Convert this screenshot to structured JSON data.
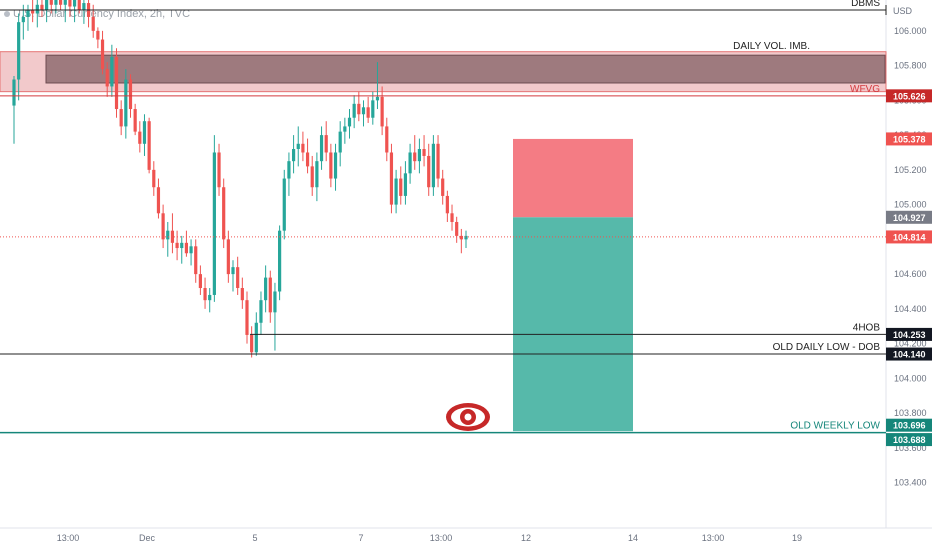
{
  "title_bar": {
    "text": "U.S. Dollar Currency Index, 2h, TVC"
  },
  "axis": {
    "currency": "USD"
  },
  "colors": {
    "bull": "#26a69a",
    "bear": "#ef5350",
    "stop_zone": "#f47c84",
    "target_zone": "#56b9aa",
    "imbalance_zone": "#9e7a7e",
    "wfvg_band": "#f2c9cb",
    "old_weekly_low": "#15867a"
  },
  "chart_data": {
    "type": "candlestick",
    "x_tick_labels": [
      "13:00",
      "Dec",
      "5",
      "7",
      "13:00",
      "12",
      "14",
      "13:00",
      "19"
    ],
    "y_tick_labels": [
      "106.000",
      "105.800",
      "105.600",
      "105.400",
      "105.200",
      "105.000",
      "104.800",
      "104.600",
      "104.400",
      "104.200",
      "104.000",
      "103.800",
      "103.600",
      "103.400"
    ],
    "ylim": [
      103.3,
      106.12
    ],
    "candles": [
      {
        "o": 105.57,
        "h": 105.74,
        "l": 105.35,
        "c": 105.72
      },
      {
        "o": 105.72,
        "h": 106.1,
        "l": 105.6,
        "c": 106.05
      },
      {
        "o": 106.05,
        "h": 106.15,
        "l": 105.95,
        "c": 106.08
      },
      {
        "o": 106.08,
        "h": 106.15,
        "l": 106.0,
        "c": 106.12
      },
      {
        "o": 106.12,
        "h": 106.2,
        "l": 106.05,
        "c": 106.1
      },
      {
        "o": 106.1,
        "h": 106.2,
        "l": 106.02,
        "c": 106.15
      },
      {
        "o": 106.15,
        "h": 106.22,
        "l": 106.08,
        "c": 106.12
      },
      {
        "o": 106.12,
        "h": 106.25,
        "l": 106.05,
        "c": 106.18
      },
      {
        "o": 106.18,
        "h": 106.25,
        "l": 106.1,
        "c": 106.15
      },
      {
        "o": 106.15,
        "h": 106.22,
        "l": 106.1,
        "c": 106.2
      },
      {
        "o": 106.2,
        "h": 106.26,
        "l": 106.12,
        "c": 106.15
      },
      {
        "o": 106.15,
        "h": 106.22,
        "l": 106.05,
        "c": 106.18
      },
      {
        "o": 106.18,
        "h": 106.24,
        "l": 106.08,
        "c": 106.14
      },
      {
        "o": 106.14,
        "h": 106.22,
        "l": 106.05,
        "c": 106.18
      },
      {
        "o": 106.18,
        "h": 106.25,
        "l": 106.1,
        "c": 106.12
      },
      {
        "o": 106.12,
        "h": 106.2,
        "l": 106.04,
        "c": 106.16
      },
      {
        "o": 106.16,
        "h": 106.22,
        "l": 106.02,
        "c": 106.08
      },
      {
        "o": 106.08,
        "h": 106.15,
        "l": 105.96,
        "c": 106.0
      },
      {
        "o": 106.0,
        "h": 106.02,
        "l": 105.9,
        "c": 105.95
      },
      {
        "o": 105.95,
        "h": 106.0,
        "l": 105.75,
        "c": 105.78
      },
      {
        "o": 105.78,
        "h": 105.82,
        "l": 105.62,
        "c": 105.68
      },
      {
        "o": 105.68,
        "h": 105.92,
        "l": 105.62,
        "c": 105.85
      },
      {
        "o": 105.85,
        "h": 105.9,
        "l": 105.5,
        "c": 105.55
      },
      {
        "o": 105.55,
        "h": 105.6,
        "l": 105.4,
        "c": 105.45
      },
      {
        "o": 105.45,
        "h": 105.78,
        "l": 105.38,
        "c": 105.72
      },
      {
        "o": 105.72,
        "h": 105.75,
        "l": 105.5,
        "c": 105.55
      },
      {
        "o": 105.55,
        "h": 105.58,
        "l": 105.4,
        "c": 105.42
      },
      {
        "o": 105.42,
        "h": 105.48,
        "l": 105.3,
        "c": 105.35
      },
      {
        "o": 105.35,
        "h": 105.52,
        "l": 105.28,
        "c": 105.48
      },
      {
        "o": 105.48,
        "h": 105.5,
        "l": 105.18,
        "c": 105.2
      },
      {
        "o": 105.2,
        "h": 105.25,
        "l": 105.05,
        "c": 105.1
      },
      {
        "o": 105.1,
        "h": 105.15,
        "l": 104.92,
        "c": 104.95
      },
      {
        "o": 104.95,
        "h": 105.0,
        "l": 104.75,
        "c": 104.8
      },
      {
        "o": 104.8,
        "h": 104.9,
        "l": 104.7,
        "c": 104.85
      },
      {
        "o": 104.85,
        "h": 104.95,
        "l": 104.72,
        "c": 104.78
      },
      {
        "o": 104.78,
        "h": 104.85,
        "l": 104.68,
        "c": 104.75
      },
      {
        "o": 104.75,
        "h": 104.82,
        "l": 104.66,
        "c": 104.78
      },
      {
        "o": 104.78,
        "h": 104.85,
        "l": 104.7,
        "c": 104.72
      },
      {
        "o": 104.72,
        "h": 104.8,
        "l": 104.65,
        "c": 104.76
      },
      {
        "o": 104.76,
        "h": 104.8,
        "l": 104.55,
        "c": 104.6
      },
      {
        "o": 104.6,
        "h": 104.65,
        "l": 104.48,
        "c": 104.52
      },
      {
        "o": 104.52,
        "h": 104.58,
        "l": 104.4,
        "c": 104.45
      },
      {
        "o": 104.45,
        "h": 104.52,
        "l": 104.38,
        "c": 104.48
      },
      {
        "o": 104.48,
        "h": 105.4,
        "l": 104.44,
        "c": 105.3
      },
      {
        "o": 105.3,
        "h": 105.35,
        "l": 105.05,
        "c": 105.1
      },
      {
        "o": 105.1,
        "h": 105.15,
        "l": 104.75,
        "c": 104.8
      },
      {
        "o": 104.8,
        "h": 104.85,
        "l": 104.55,
        "c": 104.6
      },
      {
        "o": 104.6,
        "h": 104.68,
        "l": 104.5,
        "c": 104.64
      },
      {
        "o": 104.64,
        "h": 104.7,
        "l": 104.48,
        "c": 104.52
      },
      {
        "o": 104.52,
        "h": 104.58,
        "l": 104.4,
        "c": 104.45
      },
      {
        "o": 104.45,
        "h": 104.5,
        "l": 104.2,
        "c": 104.25
      },
      {
        "o": 104.25,
        "h": 104.3,
        "l": 104.12,
        "c": 104.15
      },
      {
        "o": 104.15,
        "h": 104.38,
        "l": 104.13,
        "c": 104.32
      },
      {
        "o": 104.32,
        "h": 104.5,
        "l": 104.25,
        "c": 104.45
      },
      {
        "o": 104.45,
        "h": 104.65,
        "l": 104.38,
        "c": 104.58
      },
      {
        "o": 104.58,
        "h": 104.62,
        "l": 104.32,
        "c": 104.38
      },
      {
        "o": 104.38,
        "h": 104.55,
        "l": 104.16,
        "c": 104.5
      },
      {
        "o": 104.5,
        "h": 104.88,
        "l": 104.45,
        "c": 104.85
      },
      {
        "o": 104.85,
        "h": 105.2,
        "l": 104.8,
        "c": 105.15
      },
      {
        "o": 105.15,
        "h": 105.3,
        "l": 105.05,
        "c": 105.25
      },
      {
        "o": 105.25,
        "h": 105.4,
        "l": 105.18,
        "c": 105.32
      },
      {
        "o": 105.32,
        "h": 105.45,
        "l": 105.22,
        "c": 105.35
      },
      {
        "o": 105.35,
        "h": 105.42,
        "l": 105.25,
        "c": 105.3
      },
      {
        "o": 105.3,
        "h": 105.38,
        "l": 105.18,
        "c": 105.22
      },
      {
        "o": 105.22,
        "h": 105.28,
        "l": 105.05,
        "c": 105.1
      },
      {
        "o": 105.1,
        "h": 105.3,
        "l": 105.02,
        "c": 105.25
      },
      {
        "o": 105.25,
        "h": 105.45,
        "l": 105.2,
        "c": 105.4
      },
      {
        "o": 105.4,
        "h": 105.48,
        "l": 105.25,
        "c": 105.3
      },
      {
        "o": 105.3,
        "h": 105.35,
        "l": 105.1,
        "c": 105.15
      },
      {
        "o": 105.15,
        "h": 105.35,
        "l": 105.08,
        "c": 105.3
      },
      {
        "o": 105.3,
        "h": 105.48,
        "l": 105.22,
        "c": 105.42
      },
      {
        "o": 105.42,
        "h": 105.5,
        "l": 105.35,
        "c": 105.45
      },
      {
        "o": 105.45,
        "h": 105.55,
        "l": 105.38,
        "c": 105.5
      },
      {
        "o": 105.5,
        "h": 105.63,
        "l": 105.44,
        "c": 105.58
      },
      {
        "o": 105.58,
        "h": 105.65,
        "l": 105.48,
        "c": 105.52
      },
      {
        "o": 105.52,
        "h": 105.6,
        "l": 105.45,
        "c": 105.56
      },
      {
        "o": 105.56,
        "h": 105.62,
        "l": 105.47,
        "c": 105.5
      },
      {
        "o": 105.5,
        "h": 105.65,
        "l": 105.46,
        "c": 105.6
      },
      {
        "o": 105.6,
        "h": 105.82,
        "l": 105.55,
        "c": 105.62
      },
      {
        "o": 105.62,
        "h": 105.68,
        "l": 105.4,
        "c": 105.45
      },
      {
        "o": 105.45,
        "h": 105.5,
        "l": 105.25,
        "c": 105.3
      },
      {
        "o": 105.3,
        "h": 105.35,
        "l": 104.95,
        "c": 105.0
      },
      {
        "o": 105.0,
        "h": 105.2,
        "l": 104.95,
        "c": 105.15
      },
      {
        "o": 105.15,
        "h": 105.22,
        "l": 105.0,
        "c": 105.05
      },
      {
        "o": 105.05,
        "h": 105.25,
        "l": 105.0,
        "c": 105.18
      },
      {
        "o": 105.18,
        "h": 105.35,
        "l": 105.12,
        "c": 105.3
      },
      {
        "o": 105.3,
        "h": 105.4,
        "l": 105.2,
        "c": 105.25
      },
      {
        "o": 105.25,
        "h": 105.38,
        "l": 105.18,
        "c": 105.32
      },
      {
        "o": 105.32,
        "h": 105.4,
        "l": 105.22,
        "c": 105.28
      },
      {
        "o": 105.28,
        "h": 105.35,
        "l": 105.05,
        "c": 105.1
      },
      {
        "o": 105.1,
        "h": 105.4,
        "l": 105.05,
        "c": 105.35
      },
      {
        "o": 105.35,
        "h": 105.4,
        "l": 105.1,
        "c": 105.15
      },
      {
        "o": 105.15,
        "h": 105.2,
        "l": 105.0,
        "c": 105.05
      },
      {
        "o": 105.05,
        "h": 105.08,
        "l": 104.9,
        "c": 104.95
      },
      {
        "o": 104.95,
        "h": 105.0,
        "l": 104.85,
        "c": 104.9
      },
      {
        "o": 104.9,
        "h": 104.93,
        "l": 104.78,
        "c": 104.82
      },
      {
        "o": 104.82,
        "h": 104.86,
        "l": 104.72,
        "c": 104.8
      },
      {
        "o": 104.8,
        "h": 104.85,
        "l": 104.75,
        "c": 104.82
      }
    ],
    "last_price": 104.814,
    "levels": [
      {
        "label": "DBMS",
        "price": 106.12,
        "color": "#222222"
      },
      {
        "label": "WFVG",
        "price": 105.626,
        "color": "#d33a3f"
      },
      {
        "label": "4HOB",
        "price": 104.253,
        "color": "#222222"
      },
      {
        "label": "OLD DAILY LOW - DOB",
        "price": 104.14,
        "color": "#222222"
      },
      {
        "label": "OLD WEEKLY LOW",
        "price": 103.688,
        "color": "#15867a"
      }
    ],
    "zones": [
      {
        "label": "DAILY VOL. IMB.",
        "from": 105.7,
        "to": 105.86
      },
      {
        "label": "",
        "from": 105.65,
        "to": 105.88
      }
    ],
    "position": {
      "entry": 104.927,
      "stop": 105.378,
      "target": 103.696
    },
    "price_tags": [
      {
        "text": "105.626",
        "color": "#c62828"
      },
      {
        "text": "105.378",
        "color": "#ef5350"
      },
      {
        "text": "104.927",
        "color": "#787b86"
      },
      {
        "text": "104.814",
        "color": "#ef5350"
      },
      {
        "text": "104.253",
        "color": "#131722"
      },
      {
        "text": "104.140",
        "color": "#131722"
      },
      {
        "text": "103.696",
        "color": "#15867a"
      },
      {
        "text": "103.688",
        "color": "#15867a"
      }
    ]
  }
}
